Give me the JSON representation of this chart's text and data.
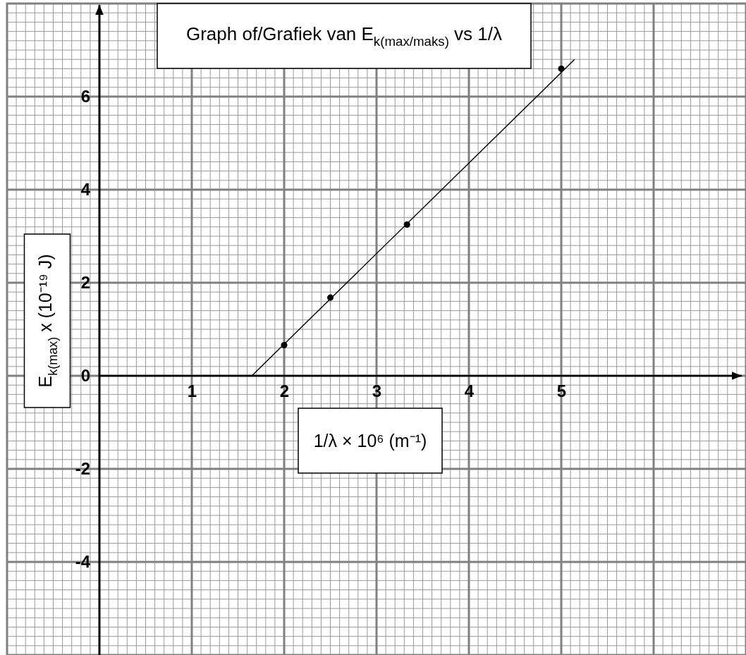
{
  "chart_data": {
    "type": "scatter",
    "title": "Graph of/Grafiek van E$_{k(max/maks)}$ vs 1/λ",
    "xlabel": "1/λ × 10⁶ (m⁻¹)",
    "ylabel": "E$_{k(max)}$ x (10⁻¹⁹ J)",
    "series": [
      {
        "type": "line",
        "x": [
          1.65,
          5.14
        ],
        "values": [
          0,
          6.79
        ],
        "color": "#000000"
      },
      {
        "x": [
          2,
          2.5,
          3.33,
          5
        ],
        "values": [
          0.66,
          1.68,
          3.25,
          6.6
        ],
        "color": "#000000",
        "marker": "circle"
      }
    ],
    "xlim": [
      -1,
      7
    ],
    "ylim": [
      -6,
      8
    ],
    "xticks": [
      1,
      2,
      3,
      4,
      5,
      {
        "value": 6,
        "label": null
      }
    ],
    "yticks": [
      -4,
      -2,
      0,
      2,
      4,
      6
    ],
    "grid": true
  }
}
